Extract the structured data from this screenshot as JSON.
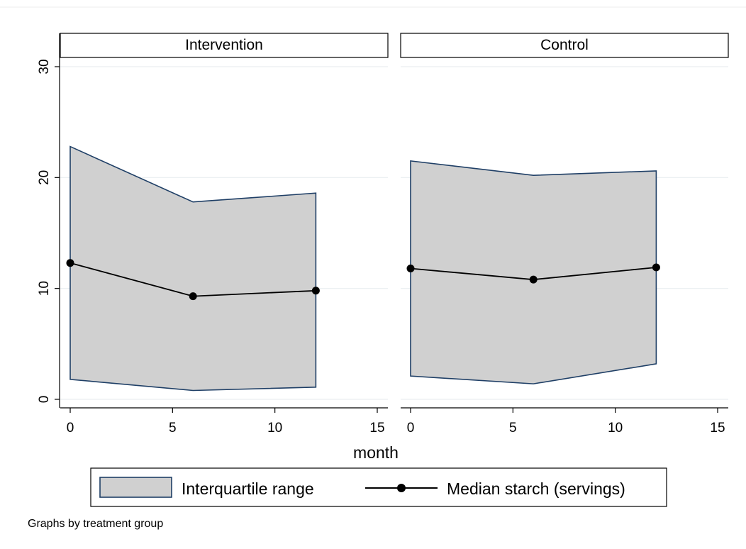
{
  "chart_data": {
    "type": "line",
    "xlabel": "month",
    "note": "Graphs by treatment group",
    "x_ticks": [
      0,
      5,
      10,
      15
    ],
    "y_ticks": [
      0,
      10,
      20,
      30
    ],
    "xlim": [
      0,
      15
    ],
    "ylim": [
      0,
      30
    ],
    "band_fill": "#d0d0d0",
    "band_stroke": "#1f3f66",
    "line_color": "#000000",
    "grid_color": "#eaeef0",
    "legend": {
      "position": "bottom",
      "entries": [
        "Interquartile range",
        "Median starch (servings)"
      ]
    },
    "panels": [
      {
        "title": "Intervention",
        "x": [
          0,
          6,
          12
        ],
        "median": [
          12.3,
          9.3,
          9.8
        ],
        "q1": [
          1.8,
          0.8,
          1.1
        ],
        "q3": [
          22.8,
          17.8,
          18.6
        ]
      },
      {
        "title": "Control",
        "x": [
          0,
          6,
          12
        ],
        "median": [
          11.8,
          10.8,
          11.9
        ],
        "q1": [
          2.1,
          1.4,
          3.2
        ],
        "q3": [
          21.5,
          20.2,
          20.6
        ]
      }
    ]
  }
}
